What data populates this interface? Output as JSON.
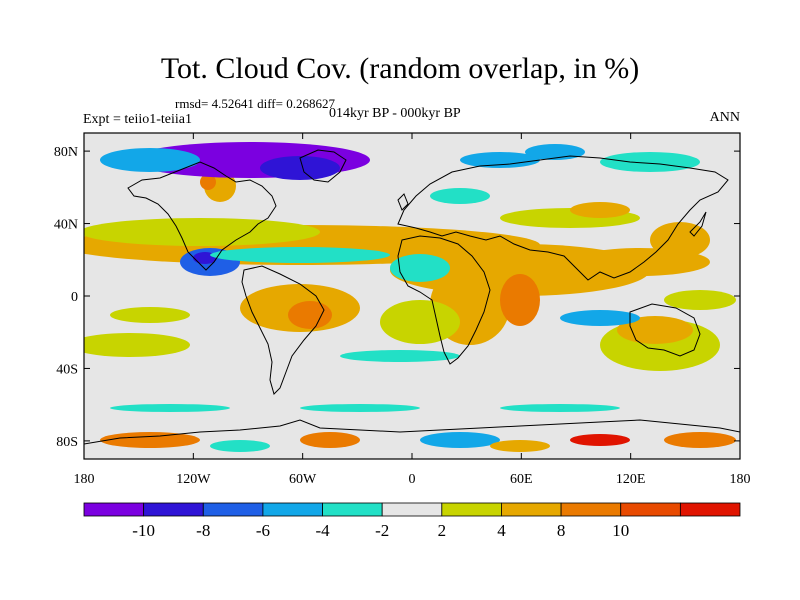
{
  "title": "Tot. Cloud Cov. (random overlap, in %)",
  "stats_line": "rmsd= 4.52641 diff= 0.268627",
  "left_label": "Expt = teiio1-teiia1",
  "center_label": "014kyr BP - 000kyr BP",
  "right_label": "ANN",
  "lat_ticks": [
    {
      "label": "80N",
      "value": 80
    },
    {
      "label": "40N",
      "value": 40
    },
    {
      "label": "0",
      "value": 0
    },
    {
      "label": "40S",
      "value": -40
    },
    {
      "label": "80S",
      "value": -80
    }
  ],
  "lon_ticks": [
    {
      "label": "180",
      "value": -180
    },
    {
      "label": "120W",
      "value": -120
    },
    {
      "label": "60W",
      "value": -60
    },
    {
      "label": "0",
      "value": 0
    },
    {
      "label": "60E",
      "value": 60
    },
    {
      "label": "120E",
      "value": 120
    },
    {
      "label": "180",
      "value": 180
    }
  ],
  "colorbar": {
    "colors": [
      "#7b00e0",
      "#2f14d6",
      "#1f5fe6",
      "#12a7e8",
      "#22e0c6",
      "#e6e6e6",
      "#c8d400",
      "#e6a800",
      "#ea7a00",
      "#e84a00",
      "#e01400"
    ],
    "labels": [
      "-10",
      "-8",
      "-6",
      "-4",
      "-2",
      "2",
      "4",
      "8",
      "10"
    ]
  },
  "field_colors": {
    "strong_negative": "#7b00e0",
    "negative": "#2f14d6",
    "mid_negative": "#1f5fe6",
    "weak_negative": "#12a7e8",
    "slight_negative": "#22e0c6",
    "neutral": "#e6e6e6",
    "slight_positive": "#c8d400",
    "positive": "#e6a800",
    "strong_positive": "#ea7a00",
    "very_positive": "#e84a00",
    "extreme_positive": "#e01400"
  }
}
